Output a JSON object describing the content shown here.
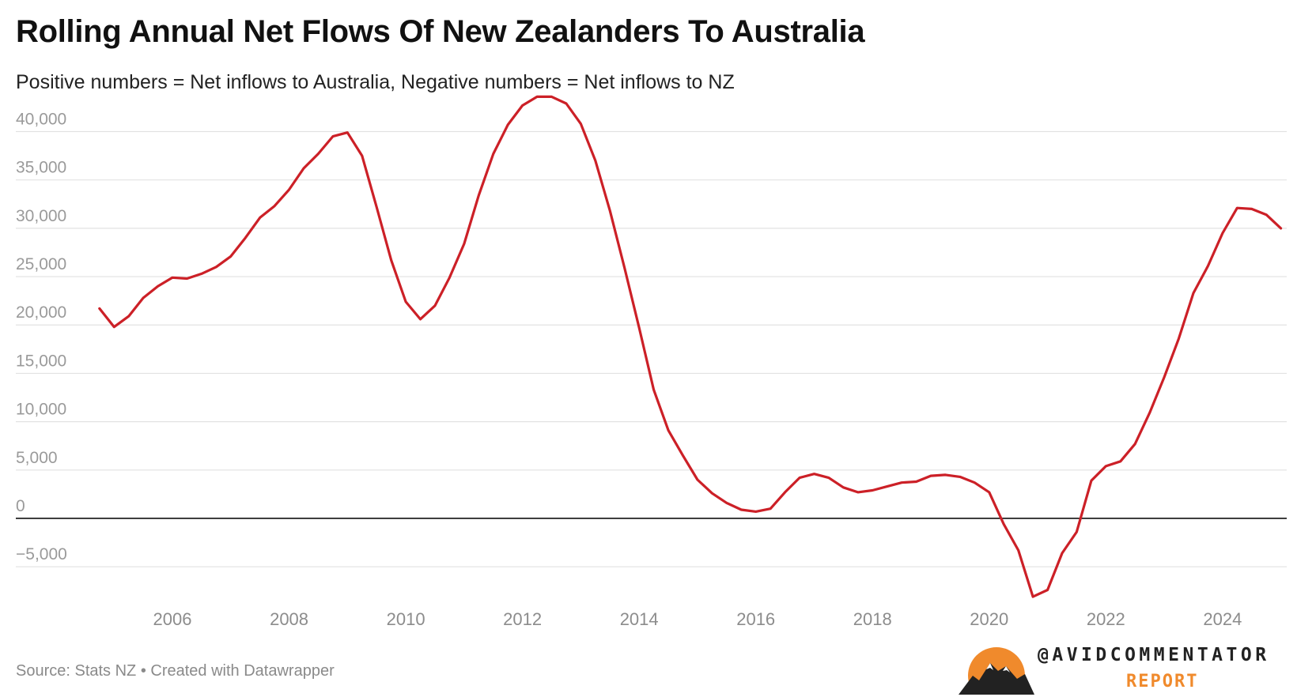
{
  "header": {
    "title": "Rolling Annual Net Flows Of New Zealanders To Australia",
    "subtitle": "Positive numbers = Net inflows to Australia, Negative numbers = Net inflows to NZ"
  },
  "footer": {
    "source": "Source: Stats NZ • Created with Datawrapper"
  },
  "brand": {
    "handle": "@AVIDCOMMENTATOR",
    "sub": "REPORT",
    "icon": "mountain-sun-icon",
    "accent_color": "#f08a2c"
  },
  "chart_data": {
    "type": "line",
    "title": "Rolling Annual Net Flows Of New Zealanders To Australia",
    "subtitle": "Positive numbers = Net inflows to Australia, Negative numbers = Net inflows to NZ",
    "xlim": [
      2004.4,
      2025.1
    ],
    "ylim": [
      -8500,
      43800
    ],
    "y_ticks": [
      -5000,
      0,
      5000,
      10000,
      15000,
      20000,
      25000,
      30000,
      35000,
      40000
    ],
    "y_tick_labels": [
      "−5,000",
      "0",
      "5,000",
      "10,000",
      "15,000",
      "20,000",
      "25,000",
      "30,000",
      "35,000",
      "40,000"
    ],
    "x_ticks": [
      2006,
      2008,
      2010,
      2012,
      2014,
      2016,
      2018,
      2020,
      2022,
      2024
    ],
    "x_tick_labels": [
      "2006",
      "2008",
      "2010",
      "2012",
      "2014",
      "2016",
      "2018",
      "2020",
      "2022",
      "2024"
    ],
    "grid": true,
    "series": [
      {
        "color": "#cc2027",
        "x": [
          2004.75,
          2005.0,
          2005.25,
          2005.5,
          2005.75,
          2006.0,
          2006.25,
          2006.5,
          2006.75,
          2007.0,
          2007.25,
          2007.5,
          2007.75,
          2008.0,
          2008.25,
          2008.5,
          2008.75,
          2009.0,
          2009.25,
          2009.5,
          2009.75,
          2010.0,
          2010.25,
          2010.5,
          2010.75,
          2011.0,
          2011.25,
          2011.5,
          2011.75,
          2012.0,
          2012.25,
          2012.5,
          2012.75,
          2013.0,
          2013.25,
          2013.5,
          2013.75,
          2014.0,
          2014.25,
          2014.5,
          2014.75,
          2015.0,
          2015.25,
          2015.5,
          2015.75,
          2016.0,
          2016.25,
          2016.5,
          2016.75,
          2017.0,
          2017.25,
          2017.5,
          2017.75,
          2018.0,
          2018.25,
          2018.5,
          2018.75,
          2019.0,
          2019.25,
          2019.5,
          2019.75,
          2020.0,
          2020.25,
          2020.5,
          2020.75,
          2021.0,
          2021.25,
          2021.5,
          2021.75,
          2022.0,
          2022.25,
          2022.5,
          2022.75,
          2023.0,
          2023.25,
          2023.5,
          2023.75,
          2024.0,
          2024.25,
          2024.5,
          2024.75,
          2025.0
        ],
        "values": [
          21700,
          19800,
          20900,
          22800,
          24000,
          24900,
          24800,
          25300,
          26000,
          27100,
          29000,
          31100,
          32300,
          34000,
          36200,
          37700,
          39500,
          39900,
          37500,
          32200,
          26700,
          22400,
          20600,
          22000,
          24900,
          28400,
          33400,
          37700,
          40700,
          42700,
          43600,
          43600,
          42900,
          40800,
          37000,
          31800,
          25900,
          19700,
          13300,
          9100,
          6500,
          4000,
          2600,
          1600,
          900,
          700,
          1000,
          2700,
          4200,
          4600,
          4200,
          3200,
          2700,
          2900,
          3300,
          3700,
          3800,
          4400,
          4500,
          4300,
          3700,
          2700,
          -600,
          -3300,
          -8100,
          -7400,
          -3600,
          -1400,
          3900,
          5400,
          5900,
          7700,
          10900,
          14600,
          18600,
          23300,
          26100,
          29500,
          32100,
          32000,
          31400,
          30000
        ]
      }
    ]
  }
}
